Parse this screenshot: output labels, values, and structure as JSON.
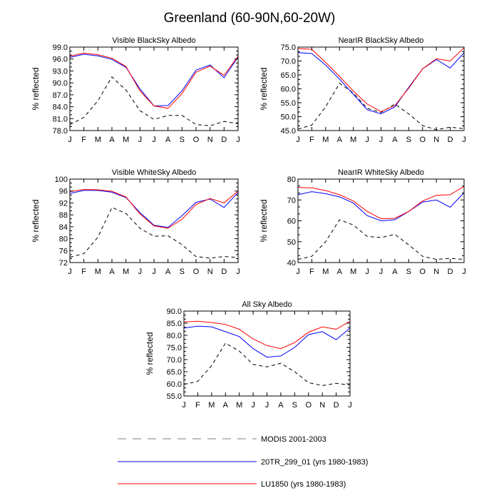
{
  "figure_title": "Greenland (60-90N,60-20W)",
  "months": [
    "J",
    "F",
    "M",
    "A",
    "M",
    "J",
    "J",
    "A",
    "S",
    "O",
    "N",
    "D",
    "J"
  ],
  "legend": [
    {
      "label": "MODIS 2001-2003",
      "color": "#000000",
      "dash": true
    },
    {
      "label": "20TR_299_01 (yrs 1980-1983)",
      "color": "#0000ff",
      "dash": false
    },
    {
      "label": "LU1850 (yrs 1980-1983)",
      "color": "#ff0000",
      "dash": false
    }
  ],
  "chart_data": [
    {
      "type": "line",
      "title": "Visible BlackSky Albedo",
      "ylabel": "% reflected",
      "ylim": [
        78,
        99
      ],
      "yticks": [
        "78.0",
        "81.0",
        "84.0",
        "87.0",
        "90.0",
        "93.0",
        "96.0",
        "99.0"
      ],
      "categories": [
        "J",
        "F",
        "M",
        "A",
        "M",
        "J",
        "J",
        "A",
        "S",
        "O",
        "N",
        "D",
        "J"
      ],
      "series": [
        {
          "values": [
            79.5,
            81.3,
            85.5,
            91.5,
            88.2,
            83.0,
            80.8,
            81.8,
            81.8,
            79.5,
            79.2,
            80.3,
            79.7
          ]
        },
        {
          "values": [
            96.4,
            97.2,
            96.8,
            95.9,
            93.9,
            88.5,
            84.2,
            84.3,
            88.0,
            93.2,
            94.5,
            91.3,
            96.5
          ]
        },
        {
          "values": [
            96.7,
            97.5,
            97.1,
            96.2,
            94.1,
            88.0,
            84.2,
            83.6,
            87.3,
            92.7,
            94.2,
            91.9,
            96.7
          ]
        }
      ]
    },
    {
      "type": "line",
      "title": "NearIR BlackSky Albedo",
      "ylabel": "% reflected",
      "ylim": [
        45,
        75
      ],
      "yticks": [
        "45.0",
        "50.0",
        "55.0",
        "60.0",
        "65.0",
        "70.0",
        "75.0"
      ],
      "categories": [
        "J",
        "F",
        "M",
        "A",
        "M",
        "J",
        "J",
        "A",
        "S",
        "O",
        "N",
        "D",
        "J"
      ],
      "series": [
        {
          "values": [
            45.5,
            47.0,
            53.5,
            62.0,
            58.5,
            53.0,
            51.5,
            54.5,
            51.0,
            46.8,
            45.3,
            46.2,
            45.7
          ]
        },
        {
          "values": [
            73.0,
            72.7,
            68.5,
            63.5,
            58.0,
            52.5,
            51.0,
            53.5,
            60.5,
            67.2,
            70.5,
            67.5,
            73.0
          ]
        },
        {
          "values": [
            74.5,
            74.2,
            69.5,
            64.5,
            59.2,
            54.5,
            51.8,
            54.0,
            60.2,
            67.2,
            70.8,
            70.0,
            74.8
          ]
        }
      ]
    },
    {
      "type": "line",
      "title": "Visible WhiteSky Albedo",
      "ylabel": "% reflected",
      "ylim": [
        72,
        100
      ],
      "yticks": [
        "72",
        "76",
        "80",
        "84",
        "88",
        "92",
        "96",
        "100"
      ],
      "categories": [
        "J",
        "F",
        "M",
        "A",
        "M",
        "J",
        "J",
        "A",
        "S",
        "O",
        "N",
        "D",
        "J"
      ],
      "series": [
        {
          "values": [
            73.8,
            75.0,
            80.5,
            90.5,
            88.5,
            83.5,
            80.8,
            81.0,
            78.0,
            74.0,
            73.5,
            74.0,
            73.7
          ]
        },
        {
          "values": [
            95.2,
            96.2,
            96.2,
            95.6,
            93.8,
            88.8,
            84.5,
            83.8,
            87.7,
            92.2,
            93.3,
            90.5,
            95.5
          ]
        },
        {
          "values": [
            95.8,
            96.5,
            96.4,
            95.9,
            94.0,
            88.3,
            84.3,
            83.5,
            86.5,
            91.5,
            93.5,
            92.0,
            96.0
          ]
        }
      ]
    },
    {
      "type": "line",
      "title": "NearIR WhiteSky Albedo",
      "ylabel": "% reflected",
      "ylim": [
        40,
        80
      ],
      "yticks": [
        "40",
        "50",
        "60",
        "70",
        "80"
      ],
      "categories": [
        "J",
        "F",
        "M",
        "A",
        "M",
        "J",
        "J",
        "A",
        "S",
        "O",
        "N",
        "D",
        "J"
      ],
      "series": [
        {
          "values": [
            41.5,
            43.0,
            50.0,
            60.5,
            58.0,
            52.5,
            52.0,
            53.5,
            48.5,
            43.0,
            41.5,
            42.0,
            41.5
          ]
        },
        {
          "values": [
            72.5,
            74.0,
            73.0,
            71.5,
            68.5,
            62.5,
            60.0,
            60.5,
            64.5,
            69.0,
            70.0,
            66.5,
            73.5
          ]
        },
        {
          "values": [
            76.0,
            75.8,
            74.5,
            72.5,
            69.5,
            64.5,
            61.0,
            61.2,
            64.5,
            69.5,
            72.2,
            72.5,
            76.5
          ]
        }
      ]
    },
    {
      "type": "line",
      "title": "All Sky Albedo",
      "ylabel": "% reflected",
      "ylim": [
        55,
        90
      ],
      "yticks": [
        "55.0",
        "60.0",
        "65.0",
        "70.0",
        "75.0",
        "80.0",
        "85.0",
        "90.0"
      ],
      "categories": [
        "J",
        "F",
        "M",
        "A",
        "M",
        "J",
        "J",
        "A",
        "S",
        "O",
        "N",
        "D",
        "J"
      ],
      "series": [
        {
          "values": [
            59.8,
            61.0,
            67.5,
            76.8,
            73.5,
            68.0,
            67.0,
            68.5,
            65.0,
            60.5,
            59.3,
            60.2,
            59.5
          ]
        },
        {
          "values": [
            83.0,
            83.8,
            83.5,
            81.5,
            79.5,
            74.5,
            71.0,
            71.5,
            75.0,
            80.3,
            81.5,
            78.2,
            83.0
          ]
        },
        {
          "values": [
            85.5,
            85.8,
            85.3,
            84.5,
            82.5,
            78.5,
            75.8,
            74.5,
            77.0,
            81.3,
            83.5,
            82.5,
            85.8
          ]
        }
      ]
    }
  ]
}
